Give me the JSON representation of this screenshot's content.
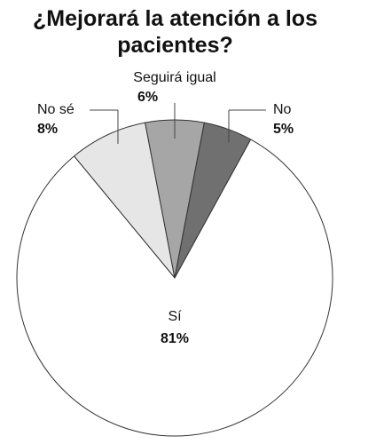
{
  "chart_data": {
    "type": "pie",
    "title": "¿Mejorará la atención a los pacientes?",
    "categories": [
      "No sé",
      "Seguirá igual",
      "No",
      "Sí"
    ],
    "values": [
      8,
      6,
      5,
      81
    ],
    "value_labels": [
      "8%",
      "6%",
      "5%",
      "81%"
    ],
    "colors": [
      "#e6e6e6",
      "#a6a6a6",
      "#707070",
      "#ffffff"
    ]
  }
}
